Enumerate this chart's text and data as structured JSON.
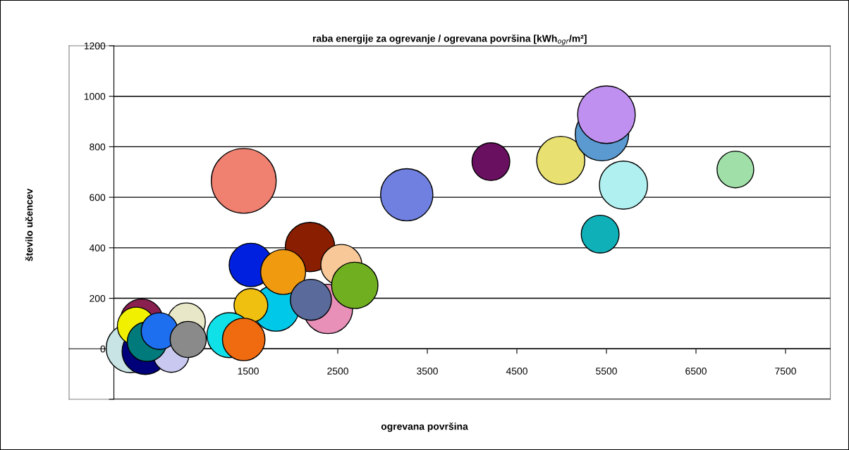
{
  "chart_data": {
    "type": "bubble",
    "title": "raba energije za ogrevanje / ogrevana površina [kWh$_{ogr}$/m²]",
    "xlabel": "ogrevana površina",
    "ylabel": "število učencev",
    "xlim": [
      -500,
      8000
    ],
    "xticks": [
      1500,
      2500,
      3500,
      4500,
      5500,
      6500,
      7500
    ],
    "ylim": [
      -200,
      1200
    ],
    "yticks": [
      {
        "value": -200,
        "label": null
      },
      0,
      200,
      400,
      600,
      800,
      1000,
      1200
    ],
    "grid": "y",
    "legend": false,
    "series": [
      {
        "x": [
          190,
          350,
          640,
          310,
          250,
          810,
          370,
          510,
          830,
          2190,
          2540,
          2390,
          1810,
          1530,
          1890,
          2200,
          2690,
          1530,
          1290,
          1450,
          1450,
          3270,
          4210,
          4990,
          5450,
          5500,
          5690,
          5430,
          6940
        ],
        "values": [
          3,
          -10,
          -23,
          113,
          90,
          107,
          28,
          70,
          37,
          403,
          332,
          158,
          161,
          332,
          304,
          194,
          251,
          172,
          54,
          37,
          665,
          610,
          741,
          746,
          850,
          927,
          648,
          454,
          710
        ],
        "sizes": [
          0.58,
          0.51,
          0.3,
          0.43,
          0.34,
          0.34,
          0.37,
          0.32,
          0.31,
          0.58,
          0.4,
          0.58,
          0.51,
          0.45,
          0.48,
          0.4,
          0.51,
          0.27,
          0.48,
          0.43,
          1.0,
          0.65,
          0.34,
          0.55,
          0.68,
          0.79,
          0.55,
          0.34,
          0.32
        ],
        "colors": [
          "#c8e4e4",
          "#00007a",
          "#c8c8f0",
          "#8a2050",
          "#f0f000",
          "#e8e8c8",
          "#007a7a",
          "#1e6ef0",
          "#8a8a8a",
          "#8a1e00",
          "#f8c898",
          "#e890b8",
          "#00c8e8",
          "#0020e0",
          "#f09a10",
          "#5a6a9a",
          "#70b020",
          "#f0c010",
          "#10e0e8",
          "#f06a10",
          "#f08070",
          "#7080e0",
          "#6a1060",
          "#e8e070",
          "#5a9ad0",
          "#c090f0",
          "#b0f0f0",
          "#10b0b8",
          "#a0e0a8"
        ]
      }
    ]
  }
}
